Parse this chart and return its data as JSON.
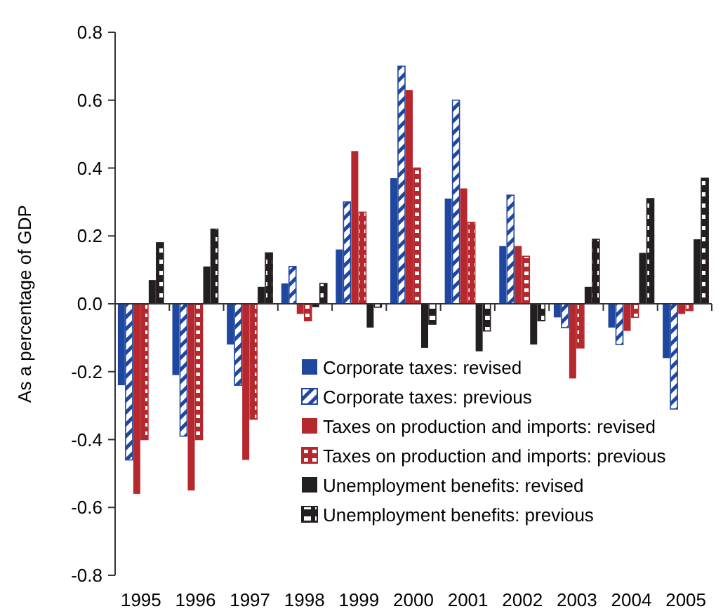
{
  "chart_data": {
    "type": "bar",
    "ylabel": "As a percentage of GDP",
    "categories": [
      "1995",
      "1996",
      "1997",
      "1998",
      "1999",
      "2000",
      "2001",
      "2002",
      "2003",
      "2004",
      "2005"
    ],
    "series": [
      {
        "name": "Corporate taxes: revised",
        "color": "#1f47a0",
        "values": [
          -0.24,
          -0.21,
          -0.12,
          0.06,
          0.16,
          0.37,
          0.31,
          0.17,
          -0.04,
          -0.07,
          -0.16
        ]
      },
      {
        "name": "Corporate taxes: previous",
        "color": "#1f47a0",
        "values": [
          -0.46,
          -0.39,
          -0.24,
          0.11,
          0.3,
          0.7,
          0.6,
          0.32,
          -0.07,
          -0.12,
          -0.31
        ]
      },
      {
        "name": "Taxes on production and imports: revised",
        "color": "#b5282e",
        "values": [
          -0.56,
          -0.55,
          -0.46,
          -0.03,
          0.45,
          0.63,
          0.34,
          0.17,
          -0.22,
          -0.08,
          -0.03
        ]
      },
      {
        "name": "Taxes on production and imports: previous",
        "color": "#b5282e",
        "values": [
          -0.4,
          -0.4,
          -0.34,
          -0.05,
          0.27,
          0.4,
          0.24,
          0.14,
          -0.13,
          -0.04,
          -0.02
        ]
      },
      {
        "name": "Unemployment benefits: revised",
        "color": "#231f20",
        "values": [
          0.07,
          0.11,
          0.05,
          -0.01,
          -0.07,
          -0.13,
          -0.14,
          -0.12,
          0.05,
          0.15,
          0.19
        ]
      },
      {
        "name": "Unemployment benefits: previous",
        "color": "#231f20",
        "values": [
          0.18,
          0.22,
          0.15,
          0.06,
          -0.01,
          -0.06,
          -0.08,
          -0.05,
          0.19,
          0.31,
          0.37
        ]
      }
    ],
    "ylim": [
      -0.8,
      0.8
    ],
    "yticks": [
      {
        "value": -0.8,
        "label": "-0.8"
      },
      {
        "value": -0.6,
        "label": "-0.6"
      },
      {
        "value": -0.4,
        "label": "-0.4"
      },
      {
        "value": -0.2,
        "label": "-0.2"
      },
      {
        "value": 0,
        "label": "0.0"
      },
      {
        "value": 0.2,
        "label": "0.2"
      },
      {
        "value": 0.4,
        "label": "0.4"
      },
      {
        "value": 0.6,
        "label": "0.6"
      },
      {
        "value": 0.8,
        "label": "0.8"
      }
    ],
    "legend": "bottom right"
  }
}
